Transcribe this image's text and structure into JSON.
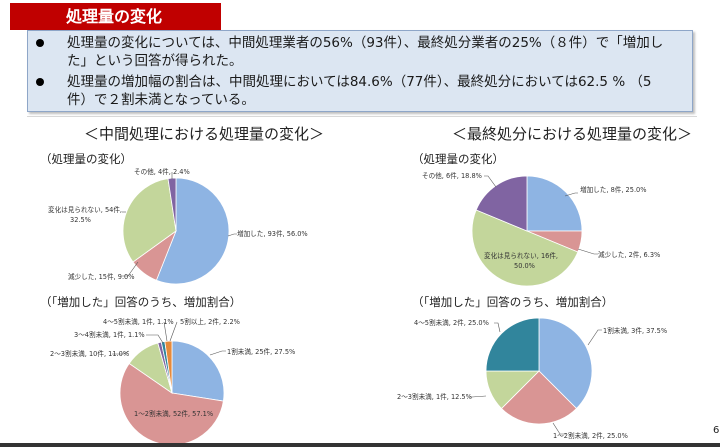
{
  "header": {
    "title": "処理量の変化"
  },
  "summary": {
    "bullets": [
      {
        "line1": "処理量の変化については、中間処理業者の56%（93件）、最終処分業者の25%（８件）で「増加し",
        "line2": "た」という回答が得られた。"
      },
      {
        "line1": "処理量の増加幅の割合は、中間処理においては84.6%（77件）、最終処分においては62.5 % （5",
        "line2": "件）で２割未満となっている。"
      }
    ]
  },
  "sections": {
    "left": {
      "title": "＜中間処理における処理量の変化＞",
      "sub1": "（処理量の変化）",
      "sub2": "（「増加した」回答のうち、増加割合）"
    },
    "right": {
      "title": "＜最終処分における処理量の変化＞",
      "sub1": "（処理量の変化）",
      "sub2": "（「増加した」回答のうち、増加割合）"
    }
  },
  "page_number": "6",
  "colors": {
    "title_bg": "#c00000",
    "summary_bg": "#dce6f2",
    "blue": "#8eb4e3",
    "red": "#d99594",
    "green": "#c3d69b",
    "purple": "#8064a2",
    "orange": "#e68a3c",
    "teal": "#31859c"
  },
  "chart_data": [
    {
      "type": "pie",
      "title": "中間処理における処理量の変化 - 処理量の変化",
      "categories": [
        "増加した",
        "減少した",
        "変化は見られない",
        "その他"
      ],
      "values": [
        93,
        15,
        54,
        4
      ],
      "percentages": [
        56.0,
        9.0,
        32.5,
        2.4
      ],
      "labels": [
        "増加した, 93件, 56.0%",
        "減少した, 15件, 9.0%",
        "変化は見られない, 54件, 32.5%",
        "その他, 4件, 2.4%"
      ]
    },
    {
      "type": "pie",
      "title": "中間処理 - 「増加した」回答のうち、増加割合",
      "categories": [
        "1割未満",
        "1～2割未満",
        "2～3割未満",
        "3～4割未満",
        "4～5割未満",
        "5割以上"
      ],
      "values": [
        25,
        52,
        10,
        1,
        1,
        2
      ],
      "percentages": [
        27.5,
        57.1,
        11.0,
        1.1,
        1.1,
        2.2
      ],
      "labels": [
        "1割未満, 25件, 27.5%",
        "1～2割未満, 52件, 57.1%",
        "2～3割未満, 10件, 11.0%",
        "3～4割未満, 1件, 1.1%",
        "4～5割未満, 1件, 1.1%",
        "5割以上, 2件, 2.2%"
      ]
    },
    {
      "type": "pie",
      "title": "最終処分における処理量の変化 - 処理量の変化",
      "categories": [
        "増加した",
        "減少した",
        "変化は見られない",
        "その他"
      ],
      "values": [
        8,
        2,
        16,
        6
      ],
      "percentages": [
        25.0,
        6.3,
        50.0,
        18.8
      ],
      "labels": [
        "増加した, 8件, 25.0%",
        "減少した, 2件, 6.3%",
        "変化は見られない, 16件, 50.0%",
        "その他, 6件, 18.8%"
      ]
    },
    {
      "type": "pie",
      "title": "最終処分 - 「増加した」回答のうち、増加割合",
      "categories": [
        "1割未満",
        "1～2割未満",
        "2～3割未満",
        "4～5割未満"
      ],
      "values": [
        3,
        2,
        1,
        2
      ],
      "percentages": [
        37.5,
        25.0,
        12.5,
        25.0
      ],
      "labels": [
        "1割未満, 3件, 37.5%",
        "1～2割未満, 2件, 25.0%",
        "2～3割未満, 1件, 12.5%",
        "4～5割未満, 2件, 25.0%"
      ]
    }
  ]
}
